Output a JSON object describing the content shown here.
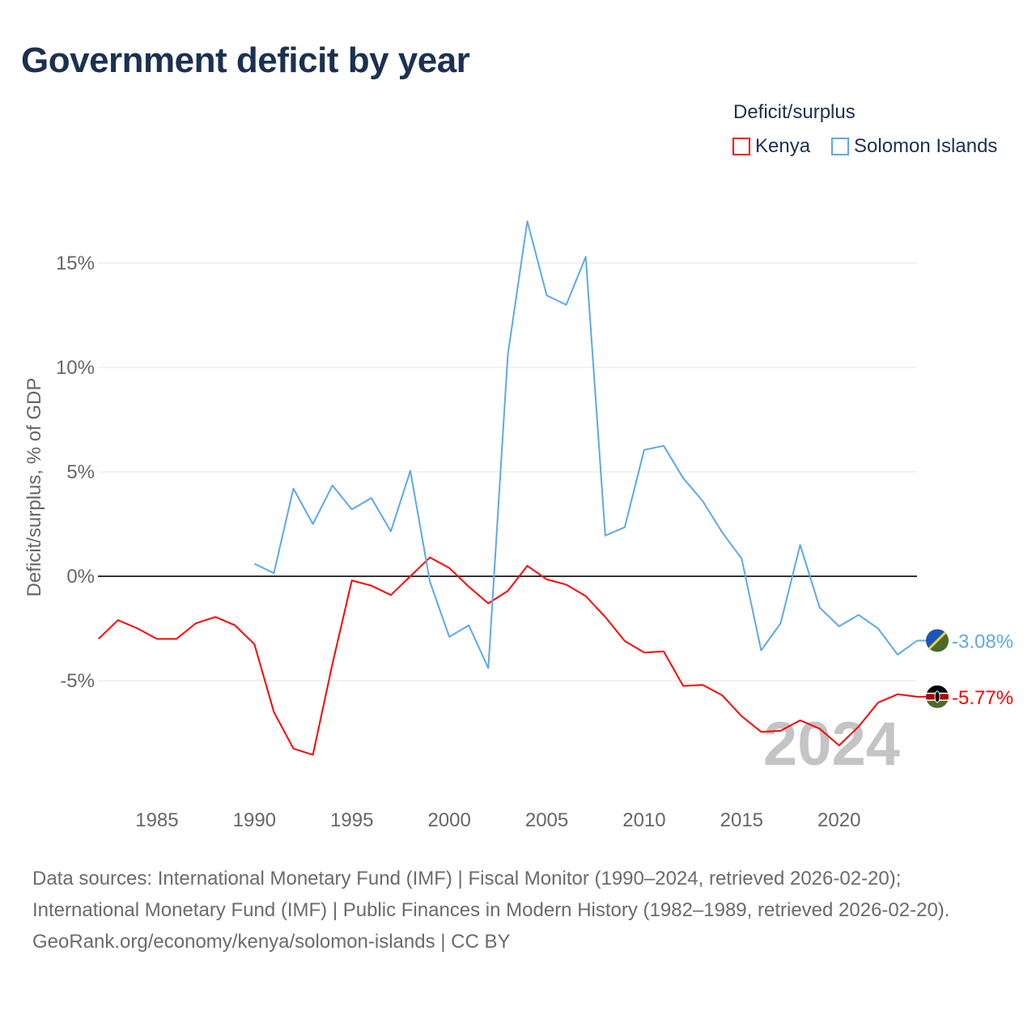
{
  "title": "Government deficit by year",
  "legend": {
    "title": "Deficit/surplus",
    "items": [
      {
        "name": "Kenya",
        "color": "#ff0000"
      },
      {
        "name": "Solomon Islands",
        "color": "#5fa8ea"
      }
    ]
  },
  "chart_data": {
    "type": "line",
    "title": "Government deficit by year",
    "xlabel": "",
    "ylabel": "Deficit/surplus, % of GDP",
    "xlim": [
      1982,
      2024
    ],
    "ylim": [
      -9.5,
      17.5
    ],
    "yticks": [
      15,
      10,
      5,
      0,
      -5
    ],
    "ytick_labels": [
      "15%",
      "10%",
      "5%",
      "0%",
      "-5%"
    ],
    "xticks": [
      1985,
      1990,
      1995,
      2000,
      2005,
      2010,
      2015,
      2020
    ],
    "xtick_labels": [
      "1985",
      "1990",
      "1995",
      "2000",
      "2005",
      "2010",
      "2015",
      "2020"
    ],
    "year_watermark": "2024",
    "grid": true,
    "legend_position": "top-right",
    "series": [
      {
        "name": "Kenya",
        "color": "#ff0000",
        "end_label": "-5.77%",
        "flag": "kenya-flag",
        "x": [
          1982,
          1983,
          1984,
          1985,
          1986,
          1987,
          1988,
          1989,
          1990,
          1991,
          1992,
          1993,
          1994,
          1995,
          1996,
          1997,
          1998,
          1999,
          2000,
          2001,
          2002,
          2003,
          2004,
          2005,
          2006,
          2007,
          2008,
          2009,
          2010,
          2011,
          2012,
          2013,
          2014,
          2015,
          2016,
          2017,
          2018,
          2019,
          2020,
          2021,
          2022,
          2023,
          2024
        ],
        "values": [
          -3.0,
          -2.1,
          -2.5,
          -3.0,
          -3.0,
          -2.25,
          -1.95,
          -2.35,
          -3.25,
          -6.5,
          -8.25,
          -8.55,
          -4.2,
          -0.2,
          -0.45,
          -0.9,
          0.0,
          0.9,
          0.4,
          -0.5,
          -1.3,
          -0.7,
          0.5,
          -0.15,
          -0.4,
          -0.95,
          -1.95,
          -3.1,
          -3.65,
          -3.6,
          -5.25,
          -5.2,
          -5.7,
          -6.7,
          -7.45,
          -7.4,
          -6.9,
          -7.3,
          -8.1,
          -7.2,
          -6.05,
          -5.65,
          -5.77
        ]
      },
      {
        "name": "Solomon Islands",
        "color": "#5fa8ea",
        "end_label": "-3.08%",
        "flag": "solomon-islands-flag",
        "x": [
          1990,
          1991,
          1992,
          1993,
          1994,
          1995,
          1996,
          1997,
          1998,
          1999,
          2000,
          2001,
          2002,
          2003,
          2004,
          2005,
          2006,
          2007,
          2008,
          2009,
          2010,
          2011,
          2012,
          2013,
          2014,
          2015,
          2016,
          2017,
          2018,
          2019,
          2020,
          2021,
          2022,
          2023,
          2024
        ],
        "values": [
          0.6,
          0.15,
          4.2,
          2.5,
          4.35,
          3.2,
          3.75,
          2.15,
          5.05,
          -0.25,
          -2.9,
          -2.35,
          -4.4,
          10.6,
          17.0,
          13.45,
          13.0,
          15.3,
          1.95,
          2.35,
          6.05,
          6.25,
          4.7,
          3.6,
          2.1,
          0.85,
          -3.55,
          -2.25,
          1.5,
          -1.5,
          -2.4,
          -1.85,
          -2.5,
          -3.75,
          -3.08
        ]
      }
    ]
  },
  "footer": {
    "sources": "Data sources: International Monetary Fund (IMF) | Fiscal Monitor (1990–2024, retrieved 2026-02-20); International Monetary Fund (IMF) | Public Finances in Modern History (1982–1989, retrieved 2026-02-20).",
    "credit": "GeoRank.org/economy/kenya/solomon-islands | CC BY"
  }
}
